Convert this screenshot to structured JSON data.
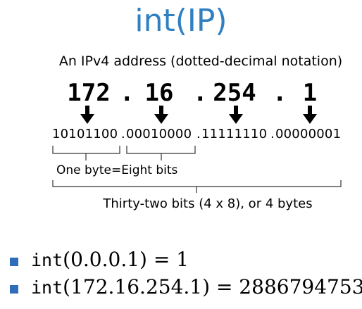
{
  "title": "int(IP)",
  "subtitle": "An IPv4 address  (dotted-decimal notation)",
  "octets": [
    "172",
    "16",
    "254",
    "1"
  ],
  "separator": ".",
  "binary": [
    "10101100",
    "00010000",
    "11111110",
    "00000001"
  ],
  "byte_label": "One byte=Eight bits",
  "total_label": "Thirty-two bits (4 x 8), or 4 bytes",
  "examples": [
    {
      "fn": "int",
      "arg": "(0.0.0.1)",
      "eq": " = 1"
    },
    {
      "fn": "int",
      "arg": "(172.16.254.1)",
      "eq": " = 2886794753"
    }
  ],
  "colors": {
    "title": "#2f7fc1",
    "bullet": "#2f6db8",
    "text": "#000000",
    "lines": "#333333"
  }
}
